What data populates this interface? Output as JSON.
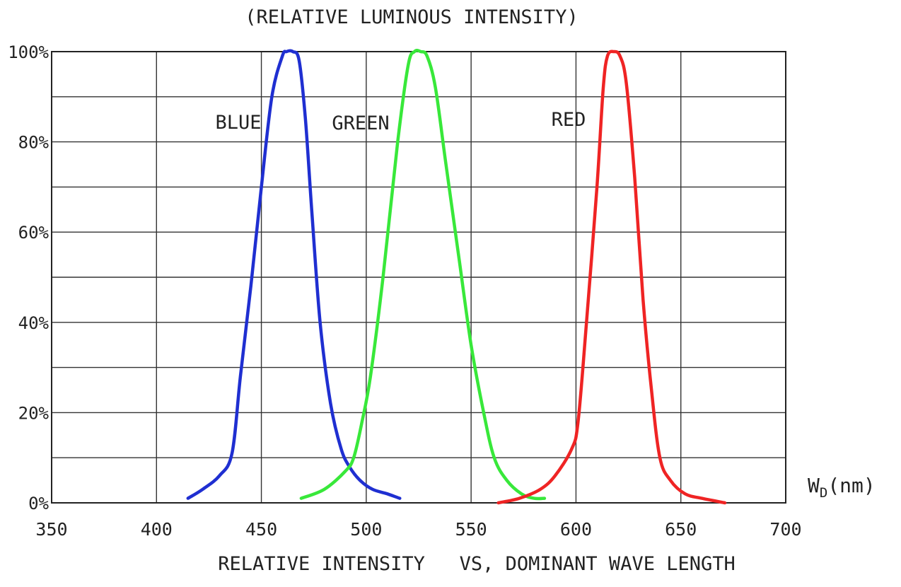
{
  "chart_data": {
    "type": "line",
    "title": "(RELATIVE LUMINOUS INTENSITY)",
    "caption": "RELATIVE INTENSITY   VS, DOMINANT WAVE LENGTH",
    "xlabel_main": "W",
    "xlabel_sub": "D",
    "xlabel_unit": "(nm)",
    "xlim": [
      350,
      700
    ],
    "ylim": [
      0,
      100
    ],
    "x_ticks": [
      "350",
      "400",
      "450",
      "500",
      "550",
      "600",
      "650",
      "700"
    ],
    "y_ticks": [
      "0%",
      "20%",
      "40%",
      "60%",
      "80%",
      "100%"
    ],
    "grid": true,
    "series": [
      {
        "name": "BLUE",
        "color": "#1f2fd1",
        "x": [
          415,
          422,
          430,
          436,
          440,
          445,
          450,
          455,
          460,
          462,
          465,
          468,
          471,
          474,
          478,
          483,
          488,
          492,
          497,
          503,
          510,
          516
        ],
        "y": [
          1,
          3,
          6,
          11,
          28,
          48,
          70,
          90,
          99,
          100,
          100,
          98,
          85,
          65,
          40,
          22,
          12,
          8,
          5,
          3,
          2,
          1
        ]
      },
      {
        "name": "GREEN",
        "color": "#38e83a",
        "x": [
          469,
          480,
          490,
          494,
          498,
          502,
          508,
          515,
          520,
          523,
          526,
          529,
          533,
          538,
          544,
          550,
          556,
          561,
          567,
          574,
          580,
          585
        ],
        "y": [
          1,
          3,
          7,
          10,
          18,
          28,
          50,
          80,
          97,
          100,
          100,
          99,
          92,
          75,
          55,
          35,
          20,
          10,
          5,
          2,
          1,
          1
        ]
      },
      {
        "name": "RED",
        "color": "#ef2424",
        "x": [
          563,
          573,
          583,
          590,
          598,
          601,
          605,
          610,
          613,
          615,
          618,
          621,
          624,
          628,
          632,
          636,
          640,
          645,
          652,
          660,
          671
        ],
        "y": [
          0,
          1,
          3,
          6,
          12,
          18,
          40,
          70,
          92,
          99,
          100,
          99,
          93,
          72,
          45,
          25,
          10,
          5,
          2,
          1,
          0
        ]
      }
    ]
  }
}
